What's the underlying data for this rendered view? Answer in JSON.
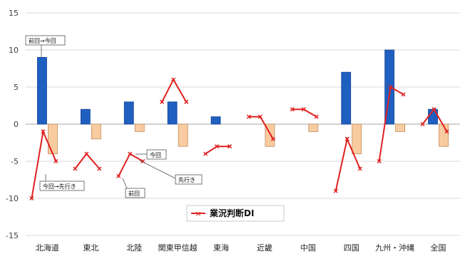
{
  "chart_data": {
    "type": "bar",
    "categories": [
      "北海道",
      "東北",
      "北陸",
      "関東甲信越",
      "東海",
      "近畿",
      "中国",
      "四国",
      "九州・沖縄",
      "全国"
    ],
    "series": [
      {
        "values": [
          9,
          2,
          3,
          3,
          1,
          0,
          0,
          7,
          10,
          2
        ],
        "color": "#1f5fbf"
      },
      {
        "values": [
          -4,
          -2,
          -1,
          -3,
          0,
          -3,
          -1,
          -4,
          -1,
          -3
        ],
        "color": "#f8cba0"
      }
    ],
    "line_series": {
      "name": "業況判断DI",
      "color": "#e02020",
      "points": [
        [
          -10,
          -1,
          -5
        ],
        [
          -6,
          -4,
          -6
        ],
        [
          -7,
          -4,
          -5
        ],
        [
          3,
          6,
          3
        ],
        [
          -4,
          -3,
          -3
        ],
        [
          1,
          1,
          -2
        ],
        [
          2,
          2,
          1
        ],
        [
          -9,
          -2,
          -6
        ],
        [
          -5,
          5,
          4
        ],
        [
          0,
          2,
          -1
        ]
      ]
    },
    "ylim": [
      -15,
      15
    ],
    "yticks": [
      15,
      10,
      5,
      0,
      -5,
      -10,
      -15
    ],
    "grid": true,
    "legend_position": "bottom-center",
    "annotations": [
      "前回→今回",
      "今回→先行き",
      "今回",
      "先行き",
      "前回"
    ]
  }
}
